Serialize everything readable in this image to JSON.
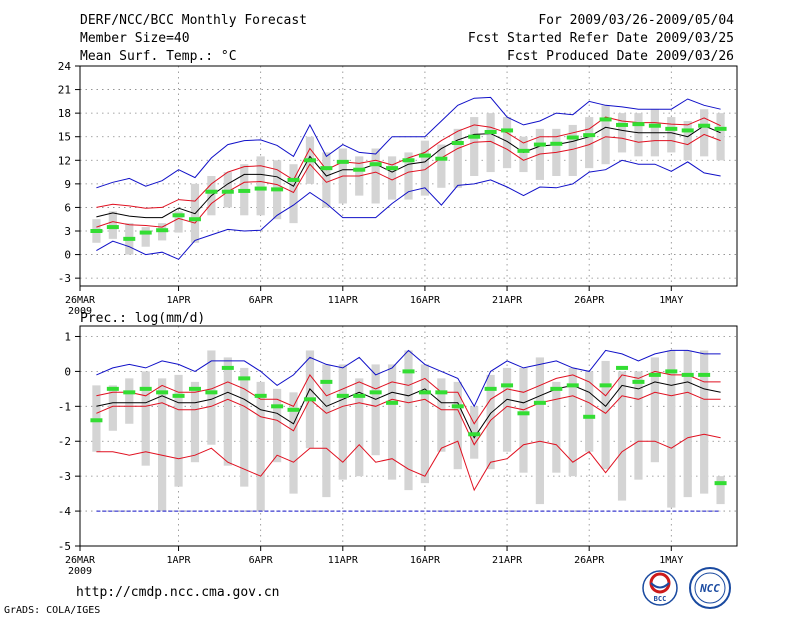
{
  "header": {
    "title": "DERF/NCC/BCC Monthly Forecast",
    "member_size": "Member Size=40",
    "variable": "Mean Surf. Temp.: °C",
    "period": "For 2009/03/26-2009/05/04",
    "started": "Fcst Started Refer Date 2009/03/25",
    "produced": "Fcst Produced Date 2009/03/26"
  },
  "footer": {
    "url": "http://cmdp.ncc.cma.gov.cn",
    "credit": "GrADS: COLA/IGES",
    "logo_bcc": "BCC",
    "logo_ncc": "NCC"
  },
  "colors": {
    "gray_bar": "#d4d4d4",
    "median": "#000000",
    "quartile": "#e01020",
    "extreme": "#1010c8",
    "obs": "#33dd33",
    "grid": "#888888"
  },
  "chart_data": [
    {
      "type": "line",
      "title": "Mean Surf. Temp.: °C",
      "ylim": [
        -4,
        24
      ],
      "yticks": [
        -3,
        0,
        3,
        6,
        9,
        12,
        15,
        18,
        21,
        24
      ],
      "ytick_labels": [
        "-3",
        "0",
        "3",
        "6",
        "9",
        "12",
        "15",
        "18",
        "21",
        "24"
      ],
      "xlim": [
        0,
        40
      ],
      "xticks": [
        0,
        6,
        11,
        16,
        21,
        26,
        31,
        36
      ],
      "xtick_labels": [
        "26MAR",
        "1APR",
        "6APR",
        "11APR",
        "16APR",
        "21APR",
        "26APR",
        "1MAY"
      ],
      "x_year_label": "2009",
      "days": [
        1,
        2,
        3,
        4,
        5,
        6,
        7,
        8,
        9,
        10,
        11,
        12,
        13,
        14,
        15,
        16,
        17,
        18,
        19,
        20,
        21,
        22,
        23,
        24,
        25,
        26,
        27,
        28,
        29,
        30,
        31,
        32,
        33,
        34,
        35,
        36,
        37,
        38,
        39
      ],
      "box_low": [
        1.5,
        2.0,
        0.0,
        1.0,
        1.8,
        2.8,
        1.5,
        5.0,
        6.0,
        5.0,
        5.0,
        4.5,
        4.0,
        9.0,
        6.0,
        6.5,
        7.5,
        6.5,
        7.0,
        7.0,
        7.5,
        8.5,
        8.5,
        10.0,
        10.5,
        11.0,
        10.5,
        9.5,
        10.0,
        10.0,
        11.0,
        11.5,
        13.0,
        12.5,
        12.5,
        13.0,
        12.0,
        12.5,
        12.0
      ],
      "box_high": [
        4.5,
        5.5,
        4.0,
        3.5,
        4.0,
        5.5,
        9.0,
        10.0,
        10.5,
        11.5,
        12.5,
        12.0,
        11.5,
        15.0,
        13.0,
        13.5,
        12.5,
        13.5,
        12.5,
        13.0,
        14.5,
        14.0,
        16.0,
        17.5,
        18.0,
        17.5,
        15.0,
        16.0,
        16.0,
        16.5,
        17.5,
        19.0,
        18.0,
        18.0,
        18.5,
        17.5,
        17.0,
        18.5,
        18.0
      ],
      "series": [
        {
          "name": "max",
          "role": "extreme",
          "values": [
            8.5,
            9.2,
            9.7,
            8.7,
            9.4,
            10.8,
            9.8,
            12.3,
            14.0,
            14.5,
            14.6,
            13.9,
            12.5,
            16.5,
            12.5,
            14.0,
            13.0,
            12.8,
            15.0,
            15.0,
            15.0,
            17.0,
            19.0,
            19.9,
            20.0,
            17.5,
            16.5,
            17.0,
            18.0,
            17.8,
            19.5,
            19.0,
            18.8,
            18.5,
            18.5,
            18.5,
            19.8,
            19.0,
            18.5
          ]
        },
        {
          "name": "q75",
          "role": "quartile",
          "values": [
            6.0,
            6.4,
            6.2,
            5.9,
            6.0,
            7.0,
            6.8,
            9.0,
            10.5,
            11.2,
            11.3,
            10.8,
            9.5,
            13.5,
            10.8,
            11.8,
            11.6,
            12.0,
            11.4,
            12.3,
            13.0,
            14.5,
            15.7,
            16.5,
            16.2,
            15.5,
            14.2,
            15.0,
            15.0,
            15.5,
            16.0,
            17.5,
            17.0,
            16.8,
            16.8,
            16.6,
            16.5,
            17.4,
            16.4
          ]
        },
        {
          "name": "q50",
          "role": "median",
          "values": [
            4.8,
            5.3,
            4.9,
            4.7,
            4.7,
            5.9,
            5.2,
            7.5,
            9.0,
            10.2,
            10.2,
            9.9,
            8.7,
            12.5,
            10.0,
            10.8,
            10.8,
            11.5,
            10.5,
            11.5,
            11.8,
            13.5,
            14.6,
            15.3,
            15.4,
            14.4,
            13.0,
            13.8,
            14.0,
            14.4,
            15.0,
            16.2,
            15.8,
            15.5,
            15.5,
            15.5,
            15.0,
            16.4,
            15.5
          ]
        },
        {
          "name": "q25",
          "role": "quartile",
          "values": [
            3.5,
            4.2,
            3.8,
            3.7,
            3.5,
            4.6,
            4.0,
            6.5,
            8.0,
            9.2,
            9.3,
            8.9,
            7.9,
            11.5,
            9.2,
            10.0,
            10.0,
            10.5,
            9.5,
            10.5,
            10.8,
            12.3,
            13.5,
            14.3,
            14.4,
            13.4,
            12.0,
            12.8,
            13.0,
            13.4,
            14.0,
            15.0,
            14.8,
            14.3,
            14.5,
            14.5,
            14.0,
            15.3,
            14.5
          ]
        },
        {
          "name": "min",
          "role": "extreme",
          "values": [
            0.5,
            1.7,
            1.0,
            0.0,
            0.3,
            -0.6,
            1.8,
            2.5,
            3.2,
            3.0,
            3.1,
            5.0,
            6.3,
            7.9,
            6.5,
            4.7,
            4.7,
            4.7,
            6.5,
            8.0,
            8.5,
            6.3,
            8.8,
            9.0,
            9.5,
            8.6,
            7.5,
            8.6,
            8.5,
            9.0,
            10.5,
            10.8,
            12.0,
            11.5,
            11.5,
            10.6,
            11.8,
            10.4,
            10.0
          ]
        },
        {
          "name": "observed",
          "role": "obs",
          "values": [
            3.0,
            3.5,
            2.0,
            2.8,
            3.1,
            5.0,
            4.5,
            8.0,
            8.0,
            8.1,
            8.4,
            8.3,
            9.5,
            12.0,
            11.0,
            11.8,
            10.8,
            11.5,
            11.0,
            12.0,
            12.6,
            12.2,
            14.2,
            15.0,
            15.6,
            15.8,
            13.2,
            14.0,
            14.1,
            14.9,
            15.2,
            17.2,
            16.5,
            16.6,
            16.4,
            16.0,
            15.8,
            16.4,
            16.0
          ]
        }
      ]
    },
    {
      "type": "line",
      "title": "Prec.: log(mm/d)",
      "ylim": [
        -5,
        1.3
      ],
      "yticks": [
        -5,
        -4,
        -3,
        -2,
        -1,
        0,
        1
      ],
      "ytick_labels": [
        "-5",
        "-4",
        "-3",
        "-2",
        "-1",
        "0",
        "1"
      ],
      "xlim": [
        0,
        40
      ],
      "xticks": [
        0,
        6,
        11,
        16,
        21,
        26,
        31,
        36
      ],
      "xtick_labels": [
        "26MAR",
        "1APR",
        "6APR",
        "11APR",
        "16APR",
        "21APR",
        "26APR",
        "1MAY"
      ],
      "x_year_label": "2009",
      "days": [
        1,
        2,
        3,
        4,
        5,
        6,
        7,
        8,
        9,
        10,
        11,
        12,
        13,
        14,
        15,
        16,
        17,
        18,
        19,
        20,
        21,
        22,
        23,
        24,
        25,
        26,
        27,
        28,
        29,
        30,
        31,
        32,
        33,
        34,
        35,
        36,
        37,
        38,
        39
      ],
      "box_low": [
        -2.3,
        -1.7,
        -1.5,
        -2.7,
        -4.0,
        -3.3,
        -2.6,
        -2.1,
        -2.7,
        -3.3,
        -4.0,
        -2.6,
        -3.5,
        -2.2,
        -3.6,
        -3.1,
        -3.0,
        -2.4,
        -3.1,
        -3.4,
        -3.2,
        -2.3,
        -2.8,
        -2.5,
        -2.8,
        -2.3,
        -2.9,
        -3.8,
        -2.9,
        -3.0,
        -2.3,
        -2.8,
        -3.7,
        -3.1,
        -2.6,
        -3.9,
        -3.6,
        -3.5,
        -3.8
      ],
      "box_high": [
        -0.4,
        -0.4,
        -0.2,
        0.0,
        -0.2,
        -0.1,
        -0.3,
        0.6,
        0.4,
        0.1,
        -0.3,
        -0.5,
        -0.6,
        0.6,
        0.2,
        0.2,
        -0.2,
        0.2,
        0.2,
        0.6,
        0.2,
        -0.2,
        -0.3,
        -1.0,
        -0.1,
        0.1,
        0.1,
        0.4,
        -0.3,
        0.1,
        0.0,
        0.3,
        0.0,
        0.0,
        0.4,
        0.6,
        0.6,
        0.6,
        -3.0
      ],
      "series": [
        {
          "name": "max",
          "role": "extreme",
          "values": [
            -0.1,
            0.1,
            0.2,
            0.1,
            0.3,
            0.2,
            0.0,
            0.3,
            0.3,
            0.3,
            0.0,
            -0.4,
            -0.1,
            0.4,
            0.2,
            0.1,
            0.4,
            -0.1,
            0.1,
            0.6,
            0.2,
            0.0,
            -0.2,
            -1.0,
            0.0,
            0.3,
            0.1,
            0.2,
            0.3,
            0.1,
            0.0,
            0.6,
            0.5,
            0.3,
            0.5,
            0.6,
            0.6,
            0.5,
            0.5
          ]
        },
        {
          "name": "q75",
          "role": "quartile",
          "values": [
            -0.7,
            -0.6,
            -0.6,
            -0.7,
            -0.4,
            -0.6,
            -0.6,
            -0.5,
            -0.3,
            -0.5,
            -0.8,
            -0.8,
            -1.0,
            -0.1,
            -0.7,
            -0.5,
            -0.3,
            -0.5,
            -0.3,
            -0.4,
            -0.2,
            -0.6,
            -0.6,
            -1.5,
            -0.8,
            -0.5,
            -0.6,
            -0.4,
            -0.2,
            -0.1,
            -0.3,
            -0.7,
            -0.1,
            -0.2,
            0.0,
            -0.1,
            -0.1,
            -0.3,
            -0.3
          ]
        },
        {
          "name": "q50",
          "role": "median",
          "values": [
            -1.0,
            -0.9,
            -0.9,
            -0.9,
            -0.7,
            -0.9,
            -0.9,
            -0.8,
            -0.6,
            -0.8,
            -1.1,
            -1.2,
            -1.5,
            -0.5,
            -1.0,
            -0.8,
            -0.6,
            -0.8,
            -0.6,
            -0.7,
            -0.5,
            -0.9,
            -0.9,
            -1.9,
            -1.2,
            -0.8,
            -0.9,
            -0.7,
            -0.5,
            -0.4,
            -0.6,
            -1.0,
            -0.4,
            -0.5,
            -0.3,
            -0.4,
            -0.3,
            -0.5,
            -0.6
          ]
        },
        {
          "name": "q25",
          "role": "quartile",
          "values": [
            -1.2,
            -1.0,
            -1.0,
            -1.0,
            -0.9,
            -1.1,
            -1.1,
            -1.0,
            -0.8,
            -1.0,
            -1.3,
            -1.4,
            -1.7,
            -0.8,
            -1.2,
            -1.0,
            -0.9,
            -1.0,
            -0.8,
            -0.9,
            -0.8,
            -1.1,
            -1.1,
            -2.1,
            -1.4,
            -1.0,
            -1.1,
            -0.9,
            -0.8,
            -0.7,
            -0.9,
            -1.2,
            -0.7,
            -0.8,
            -0.6,
            -0.7,
            -0.6,
            -0.8,
            -0.8
          ]
        },
        {
          "name": "min",
          "role": "quartile",
          "values": [
            -2.3,
            -2.3,
            -2.4,
            -2.3,
            -2.4,
            -2.5,
            -2.4,
            -2.2,
            -2.6,
            -2.8,
            -3.0,
            -2.4,
            -2.6,
            -2.2,
            -2.2,
            -2.6,
            -2.1,
            -2.6,
            -2.5,
            -2.8,
            -3.0,
            -2.2,
            -2.0,
            -3.4,
            -2.6,
            -2.5,
            -2.1,
            -2.0,
            -2.1,
            -2.6,
            -2.3,
            -2.9,
            -2.3,
            -2.0,
            -2.0,
            -2.2,
            -1.9,
            -1.8,
            -1.9
          ]
        },
        {
          "name": "observed",
          "role": "obs",
          "values": [
            -1.4,
            -0.5,
            -0.6,
            -0.5,
            -0.6,
            -0.7,
            -0.5,
            -0.6,
            0.1,
            -0.2,
            -0.7,
            -1.0,
            -1.1,
            -0.8,
            -0.3,
            -0.7,
            -0.7,
            -0.6,
            -0.9,
            0.0,
            -0.6,
            -0.6,
            -1.0,
            -1.8,
            -0.5,
            -0.4,
            -1.2,
            -0.9,
            -0.5,
            -0.4,
            -1.3,
            -0.4,
            0.1,
            -0.3,
            -0.1,
            0.0,
            -0.1,
            -0.1,
            -3.2
          ]
        }
      ],
      "baseline": -4
    }
  ]
}
